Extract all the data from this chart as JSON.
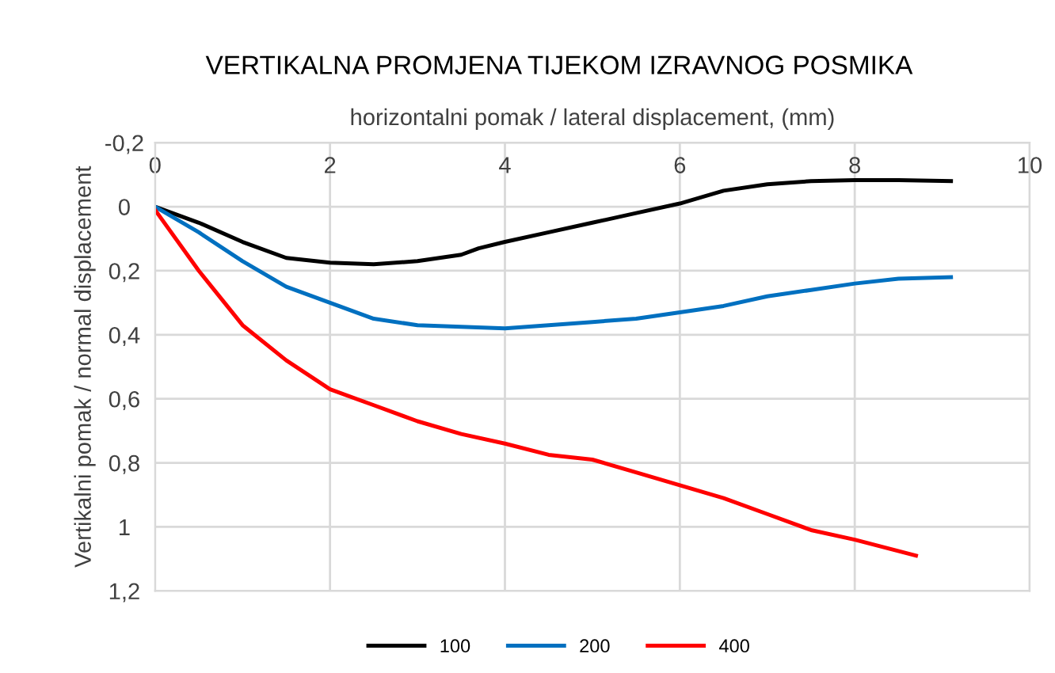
{
  "chart_data": {
    "type": "line",
    "title": "VERTIKALNA PROMJENA TIJEKOM IZRAVNOG POSMIKA",
    "xlabel": "horizontalni pomak / lateral displacement, (mm)",
    "ylabel": "Vertikalni pomak / normal displacement",
    "xlim": [
      0,
      10
    ],
    "xticks": [
      0,
      2,
      4,
      6,
      8,
      10
    ],
    "ylim": [
      1.2,
      -0.2
    ],
    "yticks": [
      {
        "value": -0.2,
        "label": "-0,2"
      },
      0,
      {
        "value": 0.2,
        "label": "0,2"
      },
      {
        "value": 0.4,
        "label": "0,4"
      },
      {
        "value": 0.6,
        "label": "0,6"
      },
      {
        "value": 0.8,
        "label": "0,8"
      },
      1,
      {
        "value": 1.2,
        "label": "1,2"
      }
    ],
    "grid": true,
    "legend": "bottom",
    "marker": "none",
    "line_style": "solid",
    "series": [
      {
        "name": "100",
        "color": "#000000",
        "x": [
          0,
          0.5,
          1,
          1.5,
          2,
          2.5,
          3,
          3.5,
          3.7,
          4,
          4.5,
          5,
          5.5,
          6,
          6.5,
          7,
          7.5,
          8,
          8.5,
          9.1
        ],
        "values": [
          0,
          0.05,
          0.11,
          0.16,
          0.175,
          0.18,
          0.17,
          0.15,
          0.13,
          0.11,
          0.08,
          0.05,
          0.02,
          -0.01,
          -0.05,
          -0.07,
          -0.08,
          -0.083,
          -0.083,
          -0.08
        ]
      },
      {
        "name": "200",
        "color": "#0070c0",
        "x": [
          0,
          0.5,
          1,
          1.5,
          2,
          2.5,
          3,
          3.5,
          4,
          4.5,
          5,
          5.5,
          6,
          6.5,
          7,
          7.5,
          8,
          8.5,
          9.1
        ],
        "values": [
          0,
          0.08,
          0.17,
          0.25,
          0.3,
          0.35,
          0.37,
          0.375,
          0.38,
          0.37,
          0.36,
          0.35,
          0.33,
          0.31,
          0.28,
          0.26,
          0.24,
          0.225,
          0.22
        ]
      },
      {
        "name": "400",
        "color": "#ff0000",
        "x": [
          0,
          0.5,
          1,
          1.5,
          2,
          2.5,
          3,
          3.5,
          4,
          4.5,
          5,
          5.5,
          6,
          6.5,
          7,
          7.5,
          8,
          8.7
        ],
        "values": [
          0.01,
          0.2,
          0.37,
          0.48,
          0.57,
          0.62,
          0.67,
          0.71,
          0.74,
          0.775,
          0.79,
          0.83,
          0.87,
          0.91,
          0.96,
          1.01,
          1.04,
          1.09
        ]
      }
    ]
  }
}
